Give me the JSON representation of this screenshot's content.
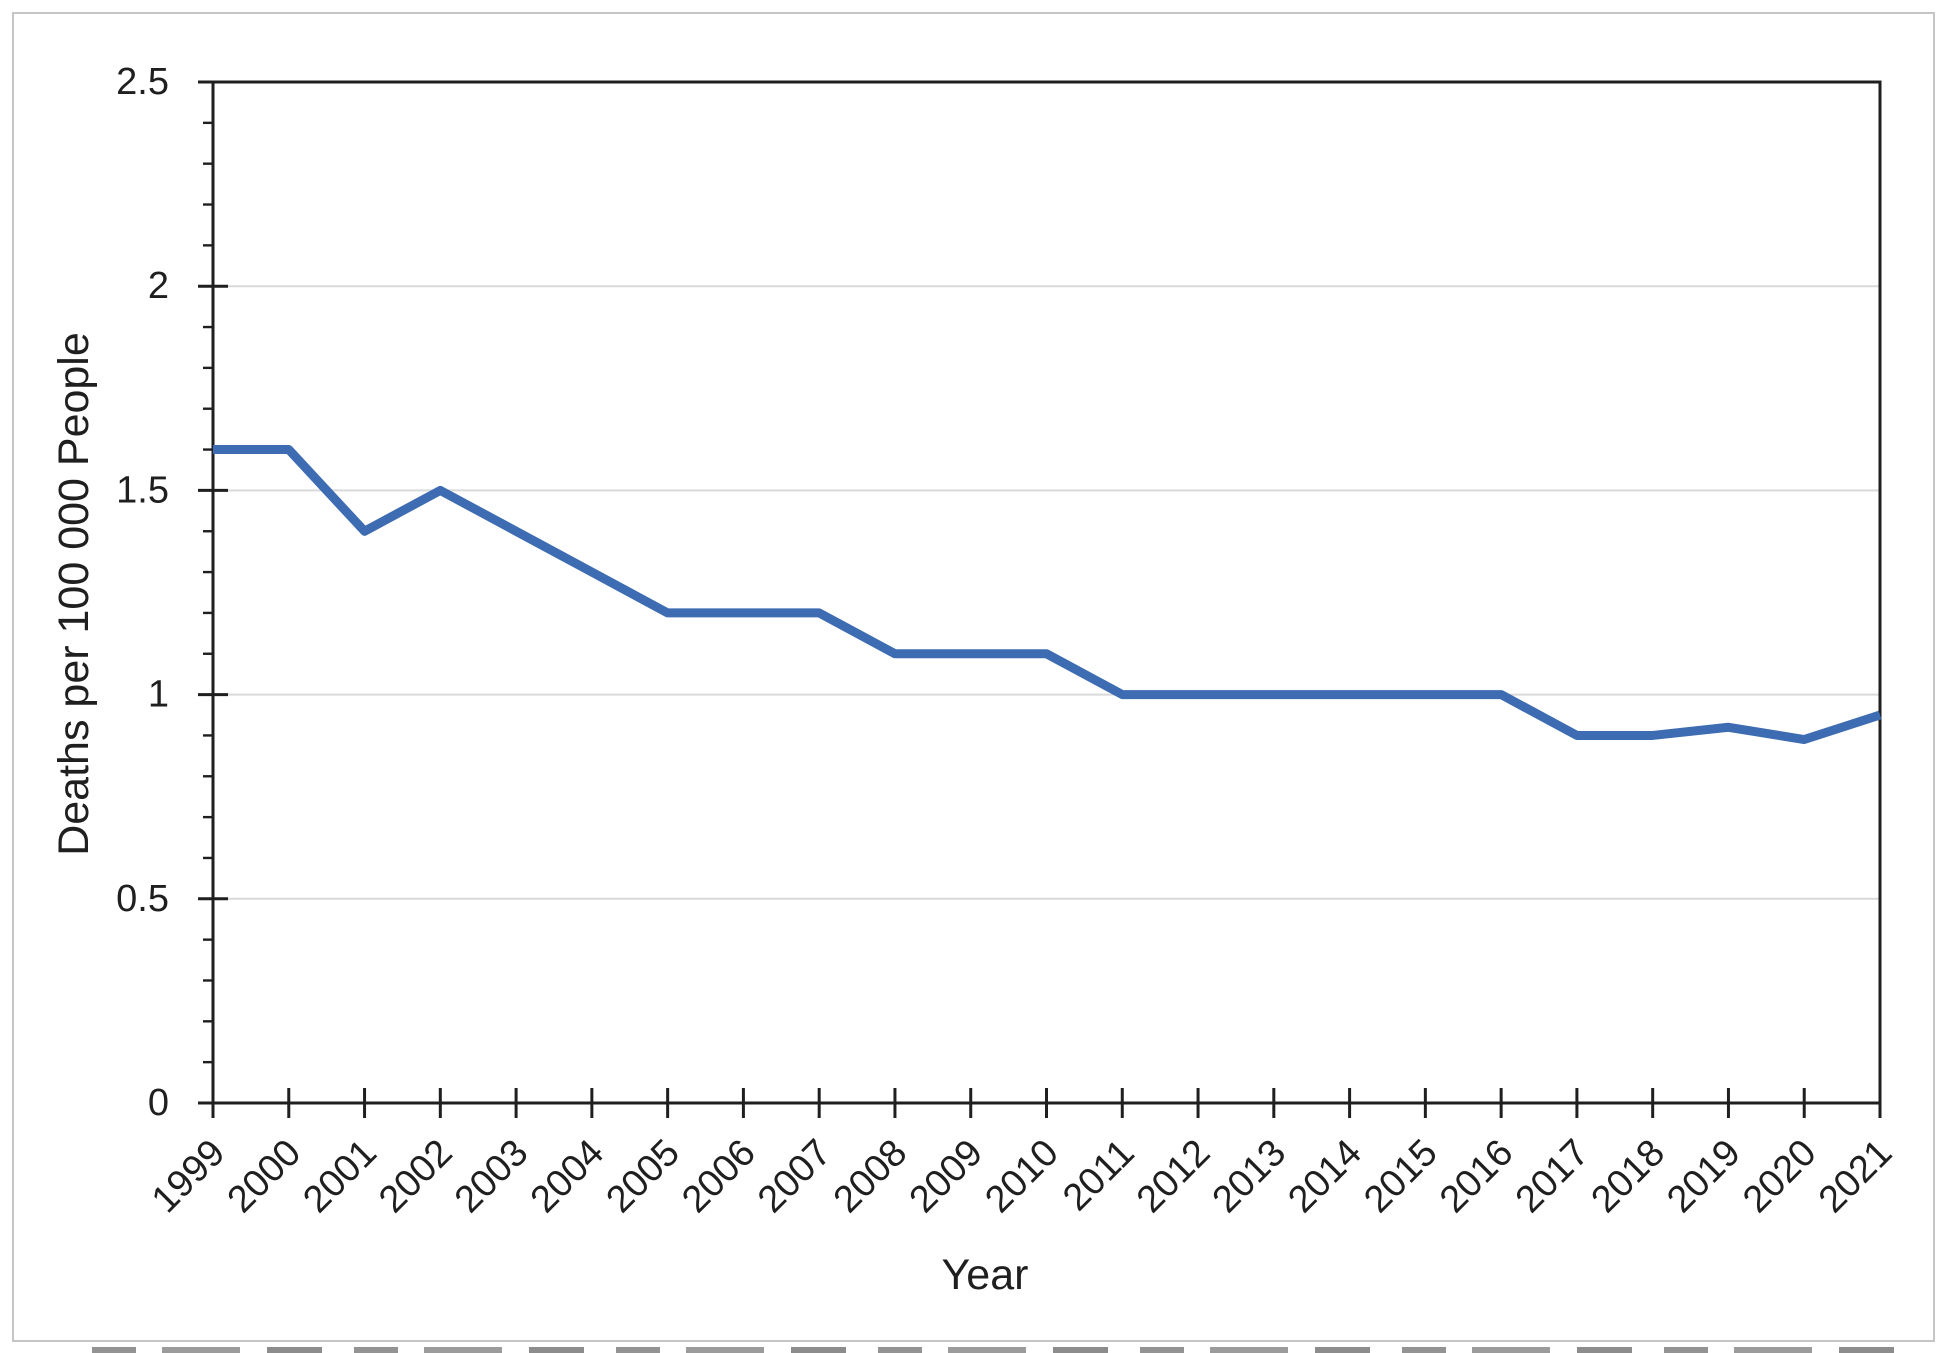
{
  "figure": {
    "background": "#FFFFFF",
    "border_color": "#C5C5C5"
  },
  "chart_data": {
    "type": "line",
    "title": "",
    "xlabel": "Year",
    "ylabel": "Deaths per 100 000 People",
    "x": [
      "1999",
      "2000",
      "2001",
      "2002",
      "2003",
      "2004",
      "2005",
      "2006",
      "2007",
      "2008",
      "2009",
      "2010",
      "2011",
      "2012",
      "2013",
      "2014",
      "2015",
      "2016",
      "2017",
      "2018",
      "2019",
      "2020",
      "2021"
    ],
    "values": [
      1.6,
      1.6,
      1.4,
      1.5,
      1.4,
      1.3,
      1.2,
      1.2,
      1.2,
      1.1,
      1.1,
      1.1,
      1.0,
      1.0,
      1.0,
      1.0,
      1.0,
      1.0,
      0.9,
      0.9,
      0.92,
      0.89,
      0.95
    ],
    "ylim": [
      0,
      2.5
    ],
    "y_major_ticks": [
      0,
      0.5,
      1,
      1.5,
      2,
      2.5
    ],
    "y_tick_labels": [
      "0",
      "0.5",
      "1",
      "1.5",
      "2",
      "2.5"
    ],
    "y_minor_tick_step": 0.1,
    "x_tick_label_rotation_deg": 45,
    "grid": "horizontal major gridlines",
    "plot_border": "full box",
    "legend": "none",
    "markers": "none",
    "colors": {
      "line": "#3E6CB2",
      "gridline": "#D9D9D9",
      "axis": "#1F1F1F",
      "text": "#1F1F1F"
    }
  }
}
